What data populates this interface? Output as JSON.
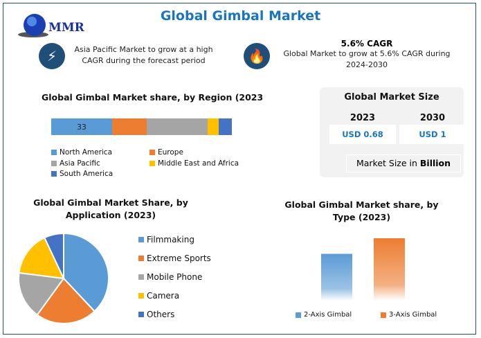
{
  "header": {
    "title": "Global Gimbal Market",
    "logo_text": "MMR"
  },
  "highlights": [
    {
      "icon": "lightning-icon",
      "text": "Asia Pacific Market to grow at a high CAGR during the forecast period"
    },
    {
      "icon": "flame-icon",
      "heading": "5.6% CAGR",
      "text": "Global Market to grow at 5.6% CAGR during 2024-2030"
    }
  ],
  "market_size": {
    "title": "Global Market Size",
    "years": [
      "2023",
      "2030"
    ],
    "values": [
      "USD 0.68",
      "USD 1"
    ],
    "note_prefix": "Market Size in ",
    "note_bold": "Billion"
  },
  "chart_data": [
    {
      "type": "bar",
      "stacked": true,
      "orientation": "horizontal",
      "title": "Global Gimbal Market share, by Region (2023",
      "series": [
        {
          "name": "North America",
          "value": 33,
          "color": "#5b9bd5",
          "label": "33"
        },
        {
          "name": "Europe",
          "value": 19,
          "color": "#ed7d31"
        },
        {
          "name": "Asia Pacific",
          "value": 33,
          "color": "#a5a5a5"
        },
        {
          "name": "Middle East and Africa",
          "value": 6,
          "color": "#ffc000"
        },
        {
          "name": "South America",
          "value": 7,
          "color": "#4472c4"
        }
      ]
    },
    {
      "type": "pie",
      "title": "Global Gimbal Market Share, by Application (2023)",
      "slices": [
        {
          "name": "Filmmaking",
          "value": 38,
          "color": "#5b9bd5"
        },
        {
          "name": "Extreme Sports",
          "value": 22,
          "color": "#ed7d31"
        },
        {
          "name": "Mobile Phone",
          "value": 17,
          "color": "#a5a5a5"
        },
        {
          "name": "Camera",
          "value": 16,
          "color": "#ffc000"
        },
        {
          "name": "Others",
          "value": 7,
          "color": "#4472c4"
        }
      ]
    },
    {
      "type": "bar",
      "title": "Global Gimbal Market share, by Type (2023)",
      "categories": [
        "2-Axis Gimbal",
        "3-Axis Gimbal"
      ],
      "values": [
        75,
        100
      ],
      "colors": [
        "#5b9bd5",
        "#ed7d31"
      ]
    }
  ]
}
